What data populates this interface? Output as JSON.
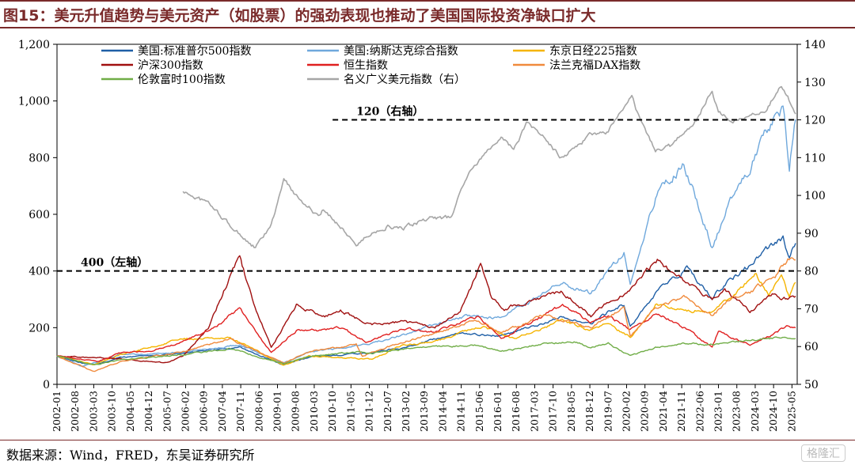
{
  "title": "图15：美元升值趋势与美元资产（如股票）的强劲表现也推动了美国国际投资净缺口扩大",
  "source": "数据来源：Wind，FRED，东吴证券研究所",
  "watermark": "格隆汇",
  "chart_data": {
    "type": "line",
    "x_ticks": [
      "2002-01",
      "2002-08",
      "2003-03",
      "2003-10",
      "2004-05",
      "2004-12",
      "2005-07",
      "2006-02",
      "2006-09",
      "2007-04",
      "2007-11",
      "2008-06",
      "2009-01",
      "2009-08",
      "2010-03",
      "2010-10",
      "2011-05",
      "2011-12",
      "2012-07",
      "2013-02",
      "2013-09",
      "2014-04",
      "2014-11",
      "2015-06",
      "2016-01",
      "2016-08",
      "2017-03",
      "2017-10",
      "2018-05",
      "2018-12",
      "2019-07",
      "2020-02",
      "2020-09",
      "2021-04",
      "2021-11",
      "2022-06",
      "2023-01",
      "2023-08",
      "2024-03",
      "2024-10",
      "2025-05"
    ],
    "y_left": {
      "min": 0,
      "max": 1200,
      "ticks": [
        0,
        200,
        400,
        600,
        800,
        1000,
        1200
      ],
      "tick_labels": [
        "0",
        "200",
        "400",
        "600",
        "800",
        "1,000",
        "1,200"
      ]
    },
    "y_right": {
      "min": 50,
      "max": 140,
      "ticks": [
        50,
        60,
        70,
        80,
        90,
        100,
        110,
        120,
        130,
        140
      ]
    },
    "grid": false,
    "legend_placement": "top-left",
    "series": [
      {
        "name": "美国:标准普尔500指数",
        "axis": "left",
        "color": "#1f5fa6",
        "points": [
          [
            2002.0,
            100
          ],
          [
            2002.8,
            75
          ],
          [
            2003.2,
            70
          ],
          [
            2004.0,
            95
          ],
          [
            2005.0,
            100
          ],
          [
            2006.0,
            110
          ],
          [
            2007.8,
            130
          ],
          [
            2009.2,
            68
          ],
          [
            2010.0,
            95
          ],
          [
            2011.5,
            108
          ],
          [
            2012.0,
            112
          ],
          [
            2013.0,
            130
          ],
          [
            2014.0,
            160
          ],
          [
            2015.0,
            180
          ],
          [
            2016.0,
            170
          ],
          [
            2017.0,
            200
          ],
          [
            2018.0,
            240
          ],
          [
            2018.95,
            215
          ],
          [
            2019.5,
            255
          ],
          [
            2020.0,
            280
          ],
          [
            2020.2,
            200
          ],
          [
            2021.0,
            325
          ],
          [
            2022.0,
            410
          ],
          [
            2022.8,
            310
          ],
          [
            2023.5,
            380
          ],
          [
            2024.0,
            420
          ],
          [
            2024.8,
            500
          ],
          [
            2025.05,
            520
          ],
          [
            2025.25,
            440
          ],
          [
            2025.45,
            500
          ]
        ]
      },
      {
        "name": "美国:纳斯达克综合指数",
        "axis": "left",
        "color": "#6fa8dc",
        "points": [
          [
            2002.0,
            100
          ],
          [
            2002.8,
            65
          ],
          [
            2003.5,
            85
          ],
          [
            2004.0,
            105
          ],
          [
            2005.0,
            105
          ],
          [
            2006.0,
            115
          ],
          [
            2007.8,
            140
          ],
          [
            2009.2,
            75
          ],
          [
            2010.0,
            115
          ],
          [
            2011.5,
            135
          ],
          [
            2012.0,
            145
          ],
          [
            2013.0,
            175
          ],
          [
            2014.0,
            210
          ],
          [
            2015.0,
            240
          ],
          [
            2016.0,
            235
          ],
          [
            2017.0,
            290
          ],
          [
            2018.0,
            360
          ],
          [
            2018.95,
            320
          ],
          [
            2019.5,
            400
          ],
          [
            2020.0,
            470
          ],
          [
            2020.2,
            360
          ],
          [
            2020.8,
            600
          ],
          [
            2021.0,
            660
          ],
          [
            2021.9,
            780
          ],
          [
            2022.8,
            490
          ],
          [
            2023.5,
            680
          ],
          [
            2024.0,
            760
          ],
          [
            2024.5,
            880
          ],
          [
            2024.9,
            960
          ],
          [
            2025.05,
            980
          ],
          [
            2025.25,
            760
          ],
          [
            2025.45,
            940
          ]
        ]
      },
      {
        "name": "东京日经225指数",
        "axis": "left",
        "color": "#f5b400",
        "points": [
          [
            2002.0,
            100
          ],
          [
            2003.2,
            70
          ],
          [
            2004.0,
            105
          ],
          [
            2006.0,
            160
          ],
          [
            2007.5,
            165
          ],
          [
            2009.2,
            68
          ],
          [
            2010.0,
            100
          ],
          [
            2011.0,
            95
          ],
          [
            2012.0,
            88
          ],
          [
            2013.0,
            140
          ],
          [
            2014.0,
            150
          ],
          [
            2015.5,
            205
          ],
          [
            2016.5,
            160
          ],
          [
            2017.5,
            200
          ],
          [
            2018.0,
            230
          ],
          [
            2018.9,
            190
          ],
          [
            2019.5,
            215
          ],
          [
            2020.2,
            165
          ],
          [
            2021.0,
            280
          ],
          [
            2021.5,
            275
          ],
          [
            2022.0,
            265
          ],
          [
            2022.8,
            255
          ],
          [
            2023.5,
            320
          ],
          [
            2024.2,
            390
          ],
          [
            2024.6,
            320
          ],
          [
            2025.0,
            380
          ],
          [
            2025.25,
            305
          ],
          [
            2025.45,
            355
          ]
        ]
      },
      {
        "name": "沪深300指数",
        "axis": "left",
        "color": "#a01010",
        "points": [
          [
            2002.0,
            100
          ],
          [
            2004.0,
            90
          ],
          [
            2005.5,
            75
          ],
          [
            2006.0,
            100
          ],
          [
            2006.8,
            200
          ],
          [
            2007.5,
            380
          ],
          [
            2007.8,
            450
          ],
          [
            2008.2,
            300
          ],
          [
            2008.8,
            130
          ],
          [
            2009.6,
            280
          ],
          [
            2010.5,
            240
          ],
          [
            2011.0,
            260
          ],
          [
            2012.0,
            210
          ],
          [
            2013.0,
            220
          ],
          [
            2014.0,
            200
          ],
          [
            2014.8,
            260
          ],
          [
            2015.45,
            420
          ],
          [
            2015.8,
            300
          ],
          [
            2016.2,
            270
          ],
          [
            2017.0,
            290
          ],
          [
            2018.0,
            330
          ],
          [
            2018.95,
            240
          ],
          [
            2019.5,
            290
          ],
          [
            2020.0,
            320
          ],
          [
            2021.1,
            440
          ],
          [
            2021.5,
            400
          ],
          [
            2022.0,
            360
          ],
          [
            2022.8,
            300
          ],
          [
            2023.2,
            330
          ],
          [
            2024.0,
            260
          ],
          [
            2024.75,
            320
          ],
          [
            2025.0,
            300
          ],
          [
            2025.45,
            310
          ]
        ]
      },
      {
        "name": "恒生指数",
        "axis": "left",
        "color": "#e02020",
        "points": [
          [
            2002.0,
            100
          ],
          [
            2003.3,
            80
          ],
          [
            2004.0,
            110
          ],
          [
            2005.0,
            120
          ],
          [
            2006.0,
            150
          ],
          [
            2007.0,
            200
          ],
          [
            2007.8,
            270
          ],
          [
            2008.8,
            110
          ],
          [
            2009.6,
            190
          ],
          [
            2010.5,
            190
          ],
          [
            2011.0,
            200
          ],
          [
            2011.8,
            150
          ],
          [
            2013.0,
            195
          ],
          [
            2014.0,
            185
          ],
          [
            2015.4,
            240
          ],
          [
            2016.1,
            160
          ],
          [
            2017.0,
            215
          ],
          [
            2018.05,
            280
          ],
          [
            2018.9,
            220
          ],
          [
            2019.5,
            240
          ],
          [
            2020.2,
            195
          ],
          [
            2021.1,
            250
          ],
          [
            2021.9,
            200
          ],
          [
            2022.8,
            130
          ],
          [
            2023.0,
            185
          ],
          [
            2024.0,
            140
          ],
          [
            2024.8,
            180
          ],
          [
            2025.2,
            210
          ],
          [
            2025.45,
            200
          ]
        ]
      },
      {
        "name": "法兰克福DAX指数",
        "axis": "left",
        "color": "#f08a3c",
        "points": [
          [
            2002.0,
            100
          ],
          [
            2003.2,
            45
          ],
          [
            2004.0,
            80
          ],
          [
            2006.0,
            115
          ],
          [
            2007.5,
            160
          ],
          [
            2009.2,
            75
          ],
          [
            2010.0,
            115
          ],
          [
            2011.5,
            140
          ],
          [
            2011.7,
            100
          ],
          [
            2013.0,
            150
          ],
          [
            2014.0,
            180
          ],
          [
            2015.3,
            230
          ],
          [
            2016.1,
            180
          ],
          [
            2017.5,
            245
          ],
          [
            2018.95,
            200
          ],
          [
            2019.5,
            240
          ],
          [
            2020.0,
            265
          ],
          [
            2020.2,
            170
          ],
          [
            2021.0,
            270
          ],
          [
            2021.9,
            305
          ],
          [
            2022.8,
            240
          ],
          [
            2023.5,
            315
          ],
          [
            2024.0,
            330
          ],
          [
            2024.8,
            380
          ],
          [
            2025.2,
            440
          ],
          [
            2025.45,
            445
          ]
        ]
      },
      {
        "name": "伦敦富时100指数",
        "axis": "left",
        "color": "#70ad47",
        "points": [
          [
            2002.0,
            100
          ],
          [
            2003.2,
            68
          ],
          [
            2004.0,
            85
          ],
          [
            2006.0,
            105
          ],
          [
            2007.5,
            125
          ],
          [
            2009.2,
            72
          ],
          [
            2010.0,
            100
          ],
          [
            2011.5,
            115
          ],
          [
            2012.0,
            110
          ],
          [
            2013.5,
            130
          ],
          [
            2015.3,
            140
          ],
          [
            2016.1,
            115
          ],
          [
            2017.5,
            145
          ],
          [
            2018.5,
            150
          ],
          [
            2018.95,
            130
          ],
          [
            2019.5,
            145
          ],
          [
            2020.2,
            100
          ],
          [
            2021.0,
            130
          ],
          [
            2022.0,
            145
          ],
          [
            2022.8,
            140
          ],
          [
            2023.5,
            150
          ],
          [
            2024.5,
            160
          ],
          [
            2025.2,
            165
          ],
          [
            2025.45,
            160
          ]
        ]
      },
      {
        "name": "名义广义美元指数（右）",
        "axis": "right",
        "color": "#a6a6a6",
        "points": [
          [
            2006.0,
            101
          ],
          [
            2006.8,
            98
          ],
          [
            2007.5,
            92
          ],
          [
            2008.3,
            86
          ],
          [
            2008.8,
            92
          ],
          [
            2009.2,
            104
          ],
          [
            2009.6,
            100
          ],
          [
            2010.0,
            97
          ],
          [
            2010.3,
            94
          ],
          [
            2010.45,
            96
          ],
          [
            2011.0,
            92
          ],
          [
            2011.5,
            87
          ],
          [
            2012.0,
            90
          ],
          [
            2012.5,
            92
          ],
          [
            2013.0,
            91
          ],
          [
            2013.5,
            93
          ],
          [
            2014.0,
            94
          ],
          [
            2014.5,
            94
          ],
          [
            2015.0,
            105
          ],
          [
            2015.5,
            110
          ],
          [
            2016.1,
            116
          ],
          [
            2016.5,
            112
          ],
          [
            2016.9,
            119
          ],
          [
            2017.5,
            115
          ],
          [
            2018.0,
            110
          ],
          [
            2018.5,
            113
          ],
          [
            2018.95,
            116
          ],
          [
            2019.5,
            117
          ],
          [
            2020.25,
            126
          ],
          [
            2020.5,
            120
          ],
          [
            2021.0,
            112
          ],
          [
            2021.5,
            113
          ],
          [
            2021.9,
            117
          ],
          [
            2022.3,
            120
          ],
          [
            2022.8,
            128
          ],
          [
            2023.0,
            122
          ],
          [
            2023.5,
            120
          ],
          [
            2024.0,
            121
          ],
          [
            2024.5,
            123
          ],
          [
            2025.0,
            129
          ],
          [
            2025.2,
            126
          ],
          [
            2025.45,
            122
          ]
        ]
      }
    ],
    "reference_lines": [
      {
        "label": "120（右轴）",
        "axis": "right",
        "value": 120,
        "x_start": 2010.75
      },
      {
        "label": "400（左轴）",
        "axis": "left",
        "value": 400,
        "x_start": 2002.0
      }
    ]
  }
}
